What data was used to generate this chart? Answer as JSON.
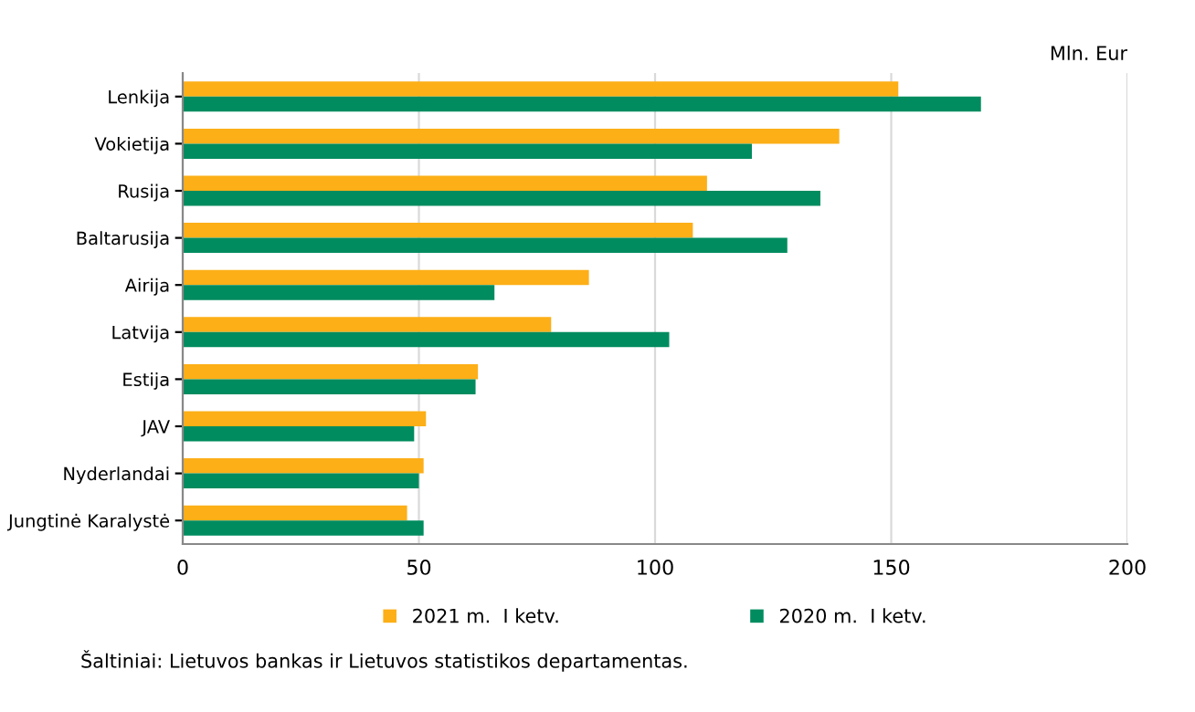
{
  "chart_data": {
    "type": "bar",
    "orientation": "horizontal",
    "xlabel": "Mln. Eur",
    "categories": [
      "Lenkija",
      "Vokietija",
      "Rusija",
      "Baltarusija",
      "Airija",
      "Latvija",
      "Estija",
      "JAV",
      "Nyderlandai",
      "Jungtinė Karalystė"
    ],
    "series": [
      {
        "name": "2021 m.  I ketv.",
        "color": "#fcaf17",
        "values": [
          151.5,
          139,
          111,
          108,
          86,
          78,
          62.5,
          51.5,
          51,
          47.5
        ]
      },
      {
        "name": "2020 m.  I ketv.",
        "color": "#008c5f",
        "values": [
          169,
          120.5,
          135,
          128,
          66,
          103,
          62,
          49,
          50,
          51
        ]
      }
    ],
    "xlim": [
      0,
      200
    ],
    "xticks": [
      0,
      50,
      100,
      150,
      200
    ],
    "grid": "x",
    "legend": "bottom",
    "annotations": [
      "Šaltiniai: Lietuvos bankas ir Lietuvos statistikos departamentas."
    ]
  }
}
